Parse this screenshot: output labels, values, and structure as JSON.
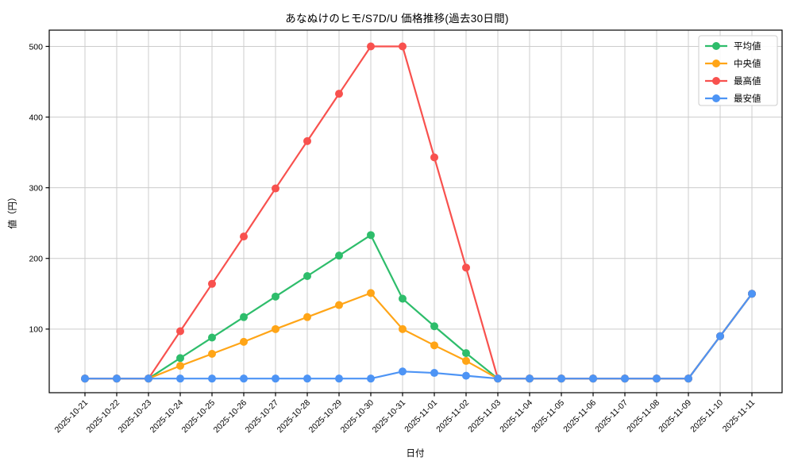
{
  "chart_data": {
    "type": "line",
    "title": "あなぬけのヒモ/S7D/U 価格推移(過去30日間)",
    "xlabel": "日付",
    "ylabel": "値（円）",
    "x": [
      "2025-10-21",
      "2025-10-22",
      "2025-10-23",
      "2025-10-24",
      "2025-10-25",
      "2025-10-26",
      "2025-10-27",
      "2025-10-28",
      "2025-10-29",
      "2025-10-30",
      "2025-10-31",
      "2025-11-01",
      "2025-11-02",
      "2025-11-03",
      "2025-11-04",
      "2025-11-05",
      "2025-11-06",
      "2025-11-07",
      "2025-11-08",
      "2025-11-09",
      "2025-11-10",
      "2025-11-11"
    ],
    "series": [
      {
        "name": "平均値",
        "color": "#2ebd6b",
        "values": [
          30,
          30,
          30,
          59,
          88,
          117,
          146,
          175,
          204,
          233,
          143,
          104,
          66,
          30,
          30,
          30,
          30,
          30,
          30,
          30,
          90,
          150
        ]
      },
      {
        "name": "中央値",
        "color": "#ffa517",
        "values": [
          30,
          30,
          30,
          48,
          65,
          82,
          100,
          117,
          134,
          151,
          100,
          77,
          55,
          30,
          30,
          30,
          30,
          30,
          30,
          30,
          90,
          150
        ]
      },
      {
        "name": "最高値",
        "color": "#f8514e",
        "values": [
          30,
          30,
          30,
          97,
          164,
          231,
          299,
          366,
          433,
          500,
          500,
          343,
          187,
          30,
          30,
          30,
          30,
          30,
          30,
          30,
          90,
          150
        ]
      },
      {
        "name": "最安値",
        "color": "#4d94f5",
        "values": [
          30,
          30,
          30,
          30,
          30,
          30,
          30,
          30,
          30,
          30,
          40,
          38,
          34,
          30,
          30,
          30,
          30,
          30,
          30,
          30,
          90,
          150
        ]
      }
    ],
    "yticks": [
      100,
      200,
      300,
      400,
      500
    ],
    "ylim": [
      10,
      523
    ],
    "grid": true,
    "grid_color": "#cccccc",
    "axis_color": "#000000",
    "background": "#ffffff",
    "legend_position": "upper right",
    "marker": "circle"
  }
}
